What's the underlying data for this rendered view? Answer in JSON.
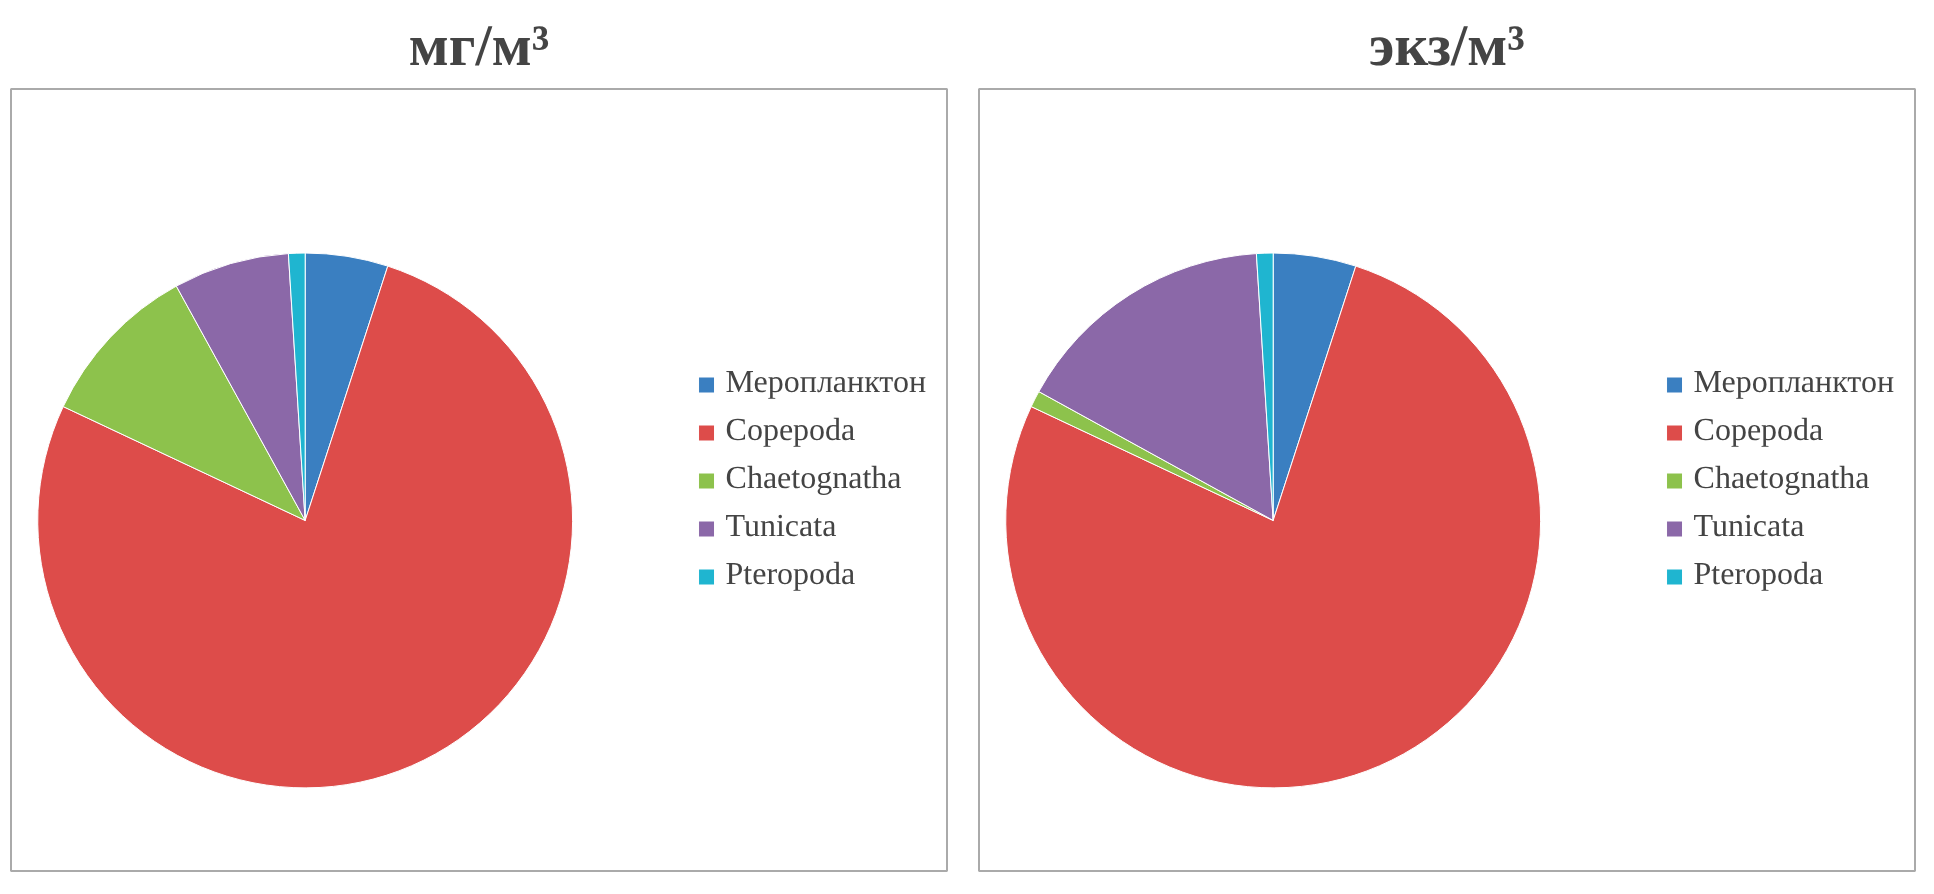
{
  "chart_data": [
    {
      "type": "pie",
      "title": "мг/м³",
      "categories": [
        "Меропланктон",
        "Copepoda",
        "Chaetognatha",
        "Tunicata",
        "Pteropoda"
      ],
      "values": [
        5,
        77,
        10,
        7,
        1
      ],
      "colors": [
        "#3a7fc1",
        "#dd4c4a",
        "#8dc24c",
        "#8b68a8",
        "#1fb5d0"
      ],
      "legend": "right"
    },
    {
      "type": "pie",
      "title": "экз/м³",
      "categories": [
        "Меропланктон",
        "Copepoda",
        "Chaetognatha",
        "Tunicata",
        "Pteropoda"
      ],
      "values": [
        5,
        77,
        1,
        16,
        1
      ],
      "colors": [
        "#3a7fc1",
        "#dd4c4a",
        "#8dc24c",
        "#8b68a8",
        "#1fb5d0"
      ],
      "legend": "right"
    }
  ]
}
